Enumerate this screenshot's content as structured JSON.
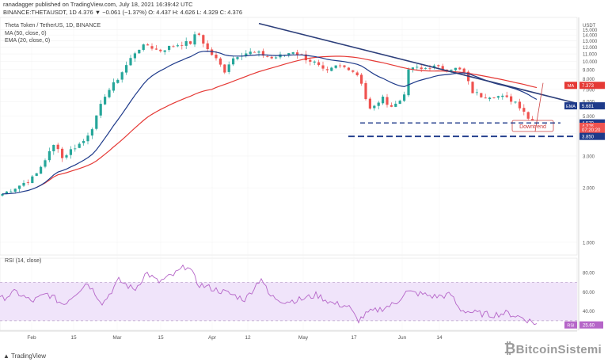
{
  "header": {
    "published": "ranadagger published on TradingView.com, July 18, 2021 16:39:42 UTC",
    "symbol_line": "BINANCE:THETAUSDT, 1D 4.376 ▼ −0.061 (−1.37%) O: 4.437 H: 4.626 L: 4.329 C: 4.376"
  },
  "legend": {
    "title": "Theta Token / TetherUS, 1D, BINANCE",
    "ma": "MA (50, close, 0)",
    "ema": "EMA (20, close, 0)",
    "rsi": "RSI (14, close)"
  },
  "annotation": {
    "downtrend": "Downtrend"
  },
  "footer": {
    "tradingview": "TradingView",
    "watermark": "BitcoinSistemi"
  },
  "colors": {
    "up": "#26a69a",
    "down": "#ef5350",
    "ma": "#e53935",
    "ema": "#1e3a8a",
    "trend": "#2c3e7a",
    "rsi": "#b565c8",
    "rsi_band": "#f0e4fa"
  },
  "chart_data": [
    {
      "type": "candlestick",
      "y_scale": "log",
      "ylim": [
        0.85,
        17.5
      ],
      "y_ticks": [
        "1.000",
        "2.000",
        "3.000",
        "4.000",
        "5.000",
        "6.000",
        "7.000",
        "8.000",
        "9.000",
        "10.000",
        "11.000",
        "12.000",
        "13.000",
        "14.000",
        "15.000",
        "USDT"
      ],
      "x_ticks": [
        "Feb",
        "15",
        "Mar",
        "15",
        "Apr",
        "12",
        "May",
        "17",
        "Jun",
        "14"
      ],
      "price_labels": [
        {
          "label": "MA",
          "value": "7.373",
          "color": "#e53935",
          "price": 7.37
        },
        {
          "label": "EMA",
          "value": "5.681",
          "color": "#1e3a8a",
          "price": 5.68
        },
        {
          "label": "",
          "value": "4.570",
          "color": "#1e3a8a",
          "price": 4.57
        },
        {
          "label": "",
          "value": "4.376",
          "color": "#ef5350",
          "price": 4.376
        },
        {
          "label": "",
          "value": "07:20:20",
          "color": "#ef5350",
          "price": 4.18
        },
        {
          "label": "",
          "value": "3.850",
          "color": "#1e3a8a",
          "price": 3.85
        }
      ],
      "support_levels": [
        4.57,
        3.85
      ]
    },
    {
      "type": "line",
      "title": "RSI (14, close)",
      "ylim": [
        20,
        95
      ],
      "y_ticks": [
        "80.00",
        "60.00",
        "40.00"
      ],
      "band": [
        30,
        70
      ],
      "last_value": {
        "label": "RSI",
        "value": "25.60"
      }
    }
  ]
}
